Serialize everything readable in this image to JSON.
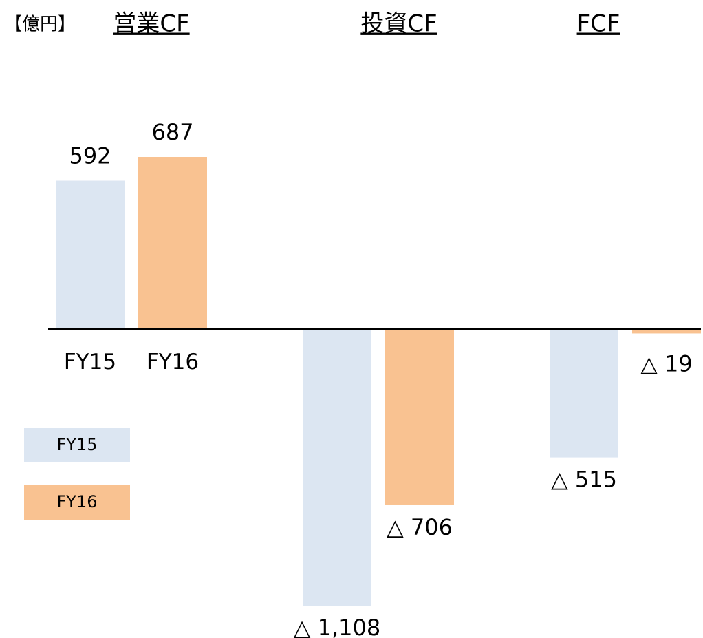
{
  "chart_data": {
    "type": "bar",
    "unit_label": "【億円】",
    "categories": [
      "営業CF",
      "投資CF",
      "FCF"
    ],
    "series": [
      {
        "name": "FY15",
        "color": "#dce6f2",
        "values": [
          592,
          -1108,
          -515
        ],
        "value_labels": [
          "592",
          "△ 1,108",
          "△ 515"
        ]
      },
      {
        "name": "FY16",
        "color": "#f9c291",
        "values": [
          687,
          -706,
          -19
        ],
        "value_labels": [
          "687",
          "△ 706",
          "△ 19"
        ]
      }
    ]
  }
}
